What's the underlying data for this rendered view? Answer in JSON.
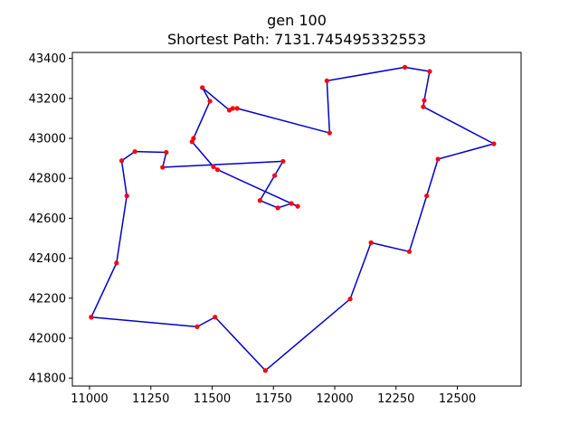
{
  "chart_data": {
    "type": "line",
    "title": "gen 100",
    "subtitle": "Shortest Path: 7131.745495332553",
    "xlabel": "",
    "ylabel": "",
    "xlim": [
      10930,
      12760
    ],
    "ylim": [
      41760,
      43430
    ],
    "x_ticks": [
      11000,
      11250,
      11500,
      11750,
      12000,
      12250,
      12500
    ],
    "y_ticks": [
      41800,
      42000,
      42200,
      42400,
      42600,
      42800,
      43000,
      43200,
      43400
    ],
    "grid": false,
    "line_color": "#0000cc",
    "marker_color": "#ff0000",
    "path": [
      {
        "x": 11007,
        "y": 42105
      },
      {
        "x": 11110,
        "y": 42376
      },
      {
        "x": 11152,
        "y": 42712
      },
      {
        "x": 11131,
        "y": 42888
      },
      {
        "x": 11185,
        "y": 42934
      },
      {
        "x": 11313,
        "y": 42930
      },
      {
        "x": 11298,
        "y": 42855
      },
      {
        "x": 11789,
        "y": 42885
      },
      {
        "x": 11755,
        "y": 42814
      },
      {
        "x": 11695,
        "y": 42689
      },
      {
        "x": 11768,
        "y": 42652
      },
      {
        "x": 11823,
        "y": 42674
      },
      {
        "x": 11849,
        "y": 42660
      },
      {
        "x": 11823,
        "y": 42674
      },
      {
        "x": 11522,
        "y": 42843
      },
      {
        "x": 11505,
        "y": 42858
      },
      {
        "x": 11418,
        "y": 42983
      },
      {
        "x": 11424,
        "y": 43000
      },
      {
        "x": 11491,
        "y": 43186
      },
      {
        "x": 11460,
        "y": 43254
      },
      {
        "x": 11570,
        "y": 43141
      },
      {
        "x": 11584,
        "y": 43150
      },
      {
        "x": 11602,
        "y": 43150
      },
      {
        "x": 11979,
        "y": 43027
      },
      {
        "x": 11968,
        "y": 43288
      },
      {
        "x": 12286,
        "y": 43356
      },
      {
        "x": 12387,
        "y": 43335
      },
      {
        "x": 12365,
        "y": 43190
      },
      {
        "x": 12361,
        "y": 43158
      },
      {
        "x": 12649,
        "y": 42973
      },
      {
        "x": 12421,
        "y": 42896
      },
      {
        "x": 12375,
        "y": 42712
      },
      {
        "x": 12304,
        "y": 42433
      },
      {
        "x": 12148,
        "y": 42478
      },
      {
        "x": 12063,
        "y": 42196
      },
      {
        "x": 11717,
        "y": 41838
      },
      {
        "x": 11512,
        "y": 42105
      },
      {
        "x": 11439,
        "y": 42057
      },
      {
        "x": 11007,
        "y": 42105
      }
    ]
  }
}
